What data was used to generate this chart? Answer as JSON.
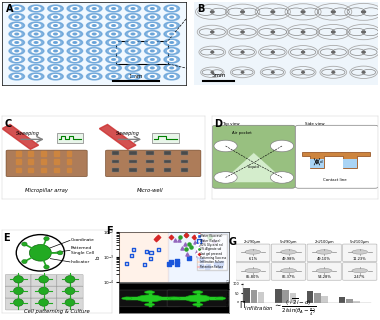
{
  "title": "",
  "bg_color": "#ffffff",
  "panel_labels": [
    "A",
    "B",
    "C",
    "D",
    "E",
    "F",
    "G"
  ],
  "panel_label_fontsize": 7,
  "panel_label_fontweight": "bold",
  "scale_bar_A": "1mm",
  "scale_bar_B": "5mm",
  "micropillar_color": "#5b9bd5",
  "micropillar_bg": "#d9eaf7",
  "grid_color": "#c8dff0",
  "cell_color": "#22aa22",
  "panel_C_label1": "Micropillar array",
  "panel_C_label2": "Micro-well",
  "panel_C_sweeping": "Sweeping",
  "panel_E_bottom": "Cell patterning & Culture",
  "col_titles": [
    "2nl/90µm",
    "5nl/90µm",
    "2nl/100µm",
    "5nl/100µm"
  ],
  "row_percentages_top": [
    "6.1%",
    "49.98%",
    "49.10%",
    "11.23%"
  ],
  "row_percentages_bot": [
    "85.80%",
    "86.37%",
    "54.28%",
    "2.47%"
  ]
}
